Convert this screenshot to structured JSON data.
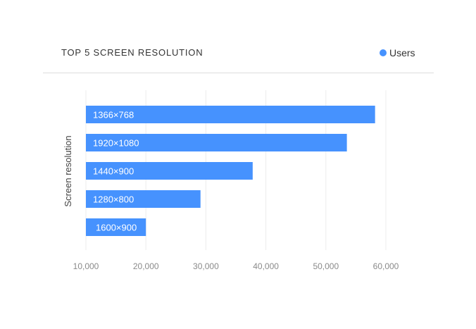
{
  "header": {
    "title": "TOP 5 SCREEN RESOLUTION"
  },
  "legend": {
    "label": "Users",
    "color": "#4692fe"
  },
  "chart_data": {
    "type": "bar",
    "orientation": "horizontal",
    "title": "TOP 5 SCREEN RESOLUTION",
    "ylabel": "Screen resolution",
    "xlabel": "",
    "categories": [
      "1366×768",
      "1920×1080",
      "1440×900",
      "1280×800",
      "1600×900"
    ],
    "series": [
      {
        "name": "Users",
        "values": [
          58200,
          53500,
          37800,
          29100,
          20000
        ],
        "color": "#4692fe"
      }
    ],
    "xlim": [
      10000,
      60000
    ],
    "xticks": [
      10000,
      20000,
      30000,
      40000,
      50000,
      60000
    ],
    "xtick_labels": [
      "10,000",
      "20,000",
      "30,000",
      "40,000",
      "50,000",
      "60,000"
    ],
    "grid": true,
    "legend_position": "top-right"
  }
}
